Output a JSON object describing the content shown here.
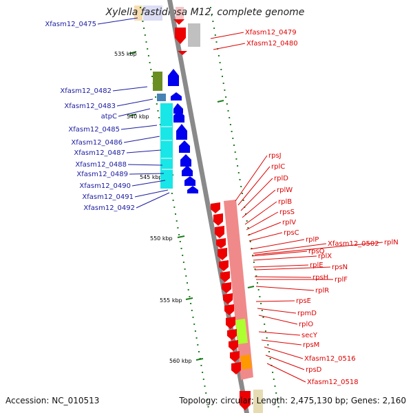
{
  "title": "Xylella fastidiosa M12, complete genome",
  "footer": {
    "accession": "Accession: NC_010513",
    "topology": "Topology: circular; Length: 2,475,130 bp; Genes: 2,160"
  },
  "colors": {
    "backbone": "#8a8a8a",
    "ruler": "#1a7a1a",
    "label_forward": "#1a1aa0",
    "label_reverse": "#dd0000",
    "arrow_forward": "#0000ee",
    "arrow_reverse": "#ee0000",
    "gene_pink": "#f08a8a",
    "gene_cyan": "#19e6e6",
    "gene_olive": "#6b8e23",
    "gene_steel": "#4682b4",
    "gene_grey": "#c0c0c0",
    "gene_lime": "#adff2f",
    "gene_orange": "#ff9900"
  },
  "kbp_ticks": [
    "535 kbp",
    "540 kbp",
    "545 kbp",
    "550 kbp",
    "555 kbp",
    "560 kbp"
  ],
  "left_labels": [
    "Xfasm12_0475",
    "Xfasm12_0482",
    "Xfasm12_0483",
    "atpC",
    "Xfasm12_0485",
    "Xfasm12_0486",
    "Xfasm12_0487",
    "Xfasm12_0488",
    "Xfasm12_0489",
    "Xfasm12_0490",
    "Xfasm12_0491",
    "Xfasm12_0492"
  ],
  "right_labels": [
    "Xfasm12_0479",
    "Xfasm12_0480",
    "rpsJ",
    "rplC",
    "rplD",
    "rplW",
    "rplB",
    "rpsS",
    "rplV",
    "rpsC",
    "rplP",
    "Xfasm12_0502",
    "rplN",
    "rpsQ",
    "rplX",
    "rplE",
    "rpsN",
    "rpsH",
    "rplF",
    "rplR",
    "rpsE",
    "rpmD",
    "rplO",
    "secY",
    "rpsM",
    "Xfasm12_0516",
    "rpsD",
    "Xfasm12_0518"
  ]
}
